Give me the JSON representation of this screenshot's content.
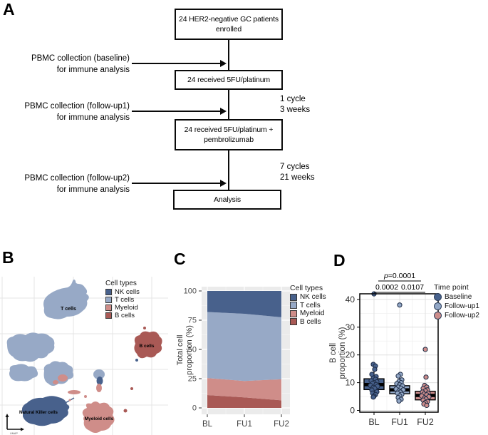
{
  "panels": {
    "a": "A",
    "b": "B",
    "c": "C",
    "d": "D"
  },
  "flowchart": {
    "boxes": [
      {
        "lines": [
          "24 HER2-negative GC patients",
          "enrolled"
        ]
      },
      {
        "lines": [
          "24 received 5FU/platinum"
        ]
      },
      {
        "lines": [
          "24 received 5FU/platinum +",
          "pembrolizumab"
        ]
      },
      {
        "lines": [
          "Analysis"
        ]
      }
    ],
    "pbmc": [
      {
        "line1": "PBMC collection (baseline)",
        "line2": "for immune analysis"
      },
      {
        "line1": "PBMC collection (follow-up1)",
        "line2": "for immune analysis"
      },
      {
        "line1": "PBMC collection (follow-up2)",
        "line2": "for immune analysis"
      }
    ],
    "cycles": [
      {
        "line1": "1 cycle",
        "line2": "3 weeks"
      },
      {
        "line1": "7 cycles",
        "line2": "21 weeks"
      }
    ]
  },
  "umap": {
    "legend_title": "Cell types",
    "legend_items": [
      {
        "label": "NK cells",
        "color": "#48618c"
      },
      {
        "label": "T cells",
        "color": "#97a9c6"
      },
      {
        "label": "Myeloid",
        "color": "#cf8d89"
      },
      {
        "label": "B cells",
        "color": "#a95955"
      }
    ],
    "cluster_labels": [
      "T cells",
      "B cells",
      "Natural Killer cells",
      "Myeloid cells"
    ],
    "axis_label": "UMAP"
  },
  "chart_data": [
    {
      "type": "area",
      "categories": [
        "BL",
        "FU1",
        "FU2"
      ],
      "stack_order_bottom_to_top": [
        "B cells",
        "Myeloid",
        "T cells",
        "NK cells"
      ],
      "series": [
        {
          "name": "NK cells",
          "color": "#48618c",
          "values": [
            18,
            19.5,
            22.5
          ]
        },
        {
          "name": "T cells",
          "color": "#97a9c6",
          "values": [
            56.5,
            57.5,
            53
          ]
        },
        {
          "name": "Myeloid",
          "color": "#cf8d89",
          "values": [
            14.5,
            14,
            18
          ]
        },
        {
          "name": "B cells",
          "color": "#a95955",
          "values": [
            11,
            9,
            6.5
          ]
        }
      ],
      "ylabel_lines": [
        "Total cell",
        "proportion (%)"
      ],
      "yticks": [
        0,
        25,
        50,
        75,
        100
      ],
      "ylim": [
        0,
        100
      ],
      "legend_title": "Cell types",
      "legend_position": "right",
      "grid": true
    },
    {
      "type": "boxplot",
      "categories": [
        "BL",
        "FU1",
        "FU2"
      ],
      "ylabel_lines": [
        "B cell",
        "proportion (%)"
      ],
      "yticks": [
        0,
        10,
        20,
        30,
        40
      ],
      "ylim": [
        0,
        45
      ],
      "legend_title": "Time point",
      "legend_position": "right",
      "grid": true,
      "groups": [
        {
          "name": "Baseline",
          "color": "#47618c",
          "box": {
            "whislo": 4.8,
            "q1": 7.5,
            "med": 9.3,
            "q3": 11.4,
            "whishi": 16.6
          },
          "points": [
            [
              0,
              42
            ],
            [
              -1,
              16.6
            ],
            [
              2,
              16
            ],
            [
              1,
              14.8
            ],
            [
              -3,
              13
            ],
            [
              3,
              12.2
            ],
            [
              -1,
              11.6
            ],
            [
              2,
              11.2
            ],
            [
              -4,
              10.7
            ],
            [
              4,
              10.3
            ],
            [
              0,
              10
            ],
            [
              -2,
              9.7
            ],
            [
              3,
              9.3
            ],
            [
              -5,
              9
            ],
            [
              5,
              8.7
            ],
            [
              -1,
              8.3
            ],
            [
              1,
              7.9
            ],
            [
              -3,
              7.3
            ],
            [
              4,
              6.7
            ],
            [
              -2,
              6.2
            ],
            [
              2,
              5.7
            ],
            [
              0,
              5.1
            ],
            [
              -1,
              4.8
            ]
          ]
        },
        {
          "name": "Follow-up1",
          "color": "#92a7c6",
          "box": {
            "whislo": 3.4,
            "q1": 6.0,
            "med": 7.4,
            "q3": 8.9,
            "whishi": 13
          },
          "points": [
            [
              0,
              38
            ],
            [
              1,
              13
            ],
            [
              -2,
              12.4
            ],
            [
              3,
              11
            ],
            [
              -1,
              10.4
            ],
            [
              2,
              10
            ],
            [
              -4,
              9.6
            ],
            [
              0,
              9.2
            ],
            [
              4,
              8.8
            ],
            [
              -2,
              8.4
            ],
            [
              2,
              8
            ],
            [
              -5,
              7.7
            ],
            [
              5,
              7.4
            ],
            [
              -1,
              7
            ],
            [
              1,
              6.6
            ],
            [
              -3,
              6.2
            ],
            [
              3,
              5.8
            ],
            [
              0,
              5.2
            ],
            [
              -2,
              4.6
            ],
            [
              2,
              4
            ],
            [
              -1,
              3.4
            ]
          ]
        },
        {
          "name": "Follow-up2",
          "color": "#cd8d8b",
          "box": {
            "whislo": 1.8,
            "q1": 3.8,
            "med": 5.4,
            "q3": 6.9,
            "whishi": 9
          },
          "points": [
            [
              0,
              22
            ],
            [
              1,
              12
            ],
            [
              -1,
              9
            ],
            [
              2,
              8.4
            ],
            [
              -3,
              7.9
            ],
            [
              3,
              7.4
            ],
            [
              0,
              7
            ],
            [
              -4,
              6.6
            ],
            [
              4,
              6.2
            ],
            [
              -2,
              5.9
            ],
            [
              2,
              5.6
            ],
            [
              -5,
              5.2
            ],
            [
              5,
              4.9
            ],
            [
              -1,
              4.5
            ],
            [
              1,
              4.1
            ],
            [
              -3,
              3.7
            ],
            [
              3,
              3.2
            ],
            [
              0,
              2.8
            ],
            [
              -2,
              2.3
            ],
            [
              2,
              1.8
            ]
          ]
        }
      ],
      "comparisons": [
        {
          "label": "p=0.0001",
          "groups": [
            0,
            2
          ],
          "row": 0,
          "italic_p": true
        },
        {
          "label": "0.0002",
          "groups": [
            0,
            1
          ],
          "row": 1,
          "italic_p": false
        },
        {
          "label": "0.0107",
          "groups": [
            1,
            2
          ],
          "row": 1,
          "italic_p": false
        }
      ]
    }
  ]
}
